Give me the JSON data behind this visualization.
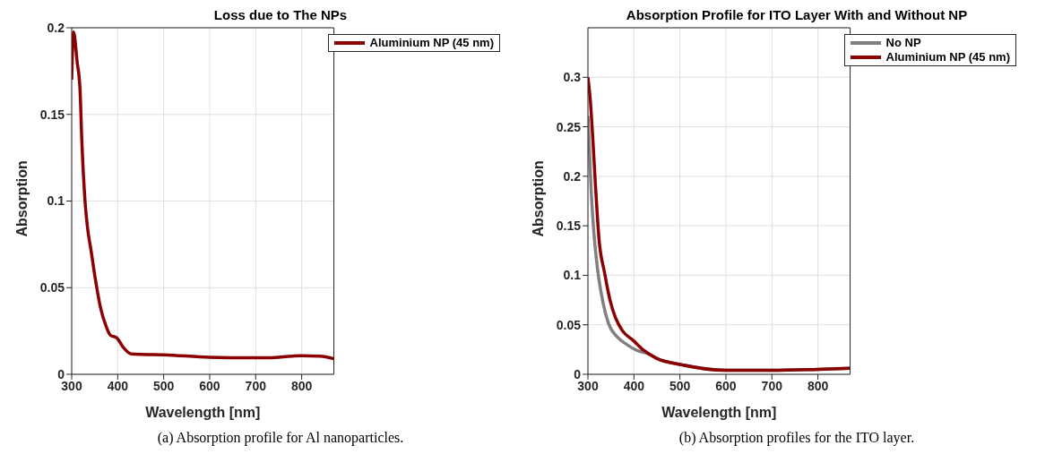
{
  "chart_data": [
    {
      "type": "line",
      "title": "Loss due to The NPs",
      "xlabel": "Wavelength [nm]",
      "ylabel": "Absorption",
      "annotations": [
        "(a) Absorption profile for Al nanoparticles."
      ],
      "xlim": [
        300,
        870
      ],
      "xticks": [
        300,
        400,
        500,
        600,
        700,
        800
      ],
      "ylim": [
        0,
        0.2
      ],
      "yticks": [
        0,
        0.05,
        0.1,
        0.15,
        0.2
      ],
      "grid": true,
      "legend": "top right",
      "line_style": "solid",
      "marker": "none",
      "series": [
        {
          "name": "Aluminium NP (45 nm)",
          "color": "#8b0000",
          "x": [
            300,
            304,
            312,
            318,
            322,
            329,
            334,
            342,
            352,
            363,
            375,
            384,
            398,
            413,
            429,
            450,
            500,
            600,
            700,
            730,
            780,
            800,
            840,
            870
          ],
          "values": [
            0.17,
            0.1975,
            0.18,
            0.165,
            0.135,
            0.1,
            0.0855,
            0.0716,
            0.054,
            0.038,
            0.0276,
            0.0226,
            0.021,
            0.0153,
            0.0118,
            0.0115,
            0.0113,
            0.0098,
            0.0095,
            0.0095,
            0.0105,
            0.0107,
            0.0105,
            0.009
          ]
        }
      ]
    },
    {
      "type": "line",
      "title": "Absorption Profile for ITO Layer With and Without NP",
      "xlabel": "Wavelength [nm]",
      "ylabel": "Absorption",
      "annotations": [
        "(b) Absorption profiles for the ITO layer."
      ],
      "xlim": [
        300,
        870
      ],
      "xticks": [
        300,
        400,
        500,
        600,
        700,
        800
      ],
      "ylim": [
        0,
        0.35
      ],
      "yticks": [
        0,
        0.05,
        0.1,
        0.15,
        0.2,
        0.25,
        0.3
      ],
      "grid": true,
      "legend": "top right",
      "line_style": "solid",
      "marker": "none",
      "series": [
        {
          "name": "No NP",
          "color": "#808080",
          "x": [
            300,
            303,
            307,
            313,
            321,
            333,
            345,
            363,
            385,
            407,
            430,
            450,
            500,
            600,
            650,
            700,
            800,
            870
          ],
          "values": [
            0.261,
            0.229,
            0.186,
            0.143,
            0.106,
            0.072,
            0.051,
            0.038,
            0.03,
            0.024,
            0.021,
            0.016,
            0.01,
            0.004,
            0.004,
            0.004,
            0.005,
            0.006
          ]
        },
        {
          "name": "Aluminium NP (45 nm)",
          "color": "#8b0000",
          "x": [
            300,
            305,
            311,
            317,
            324,
            336,
            348,
            360,
            375,
            399,
            422,
            450,
            500,
            600,
            650,
            700,
            800,
            870
          ],
          "values": [
            0.3,
            0.278,
            0.235,
            0.186,
            0.137,
            0.103,
            0.075,
            0.057,
            0.044,
            0.034,
            0.024,
            0.016,
            0.01,
            0.004,
            0.004,
            0.004,
            0.005,
            0.006
          ]
        }
      ]
    }
  ]
}
